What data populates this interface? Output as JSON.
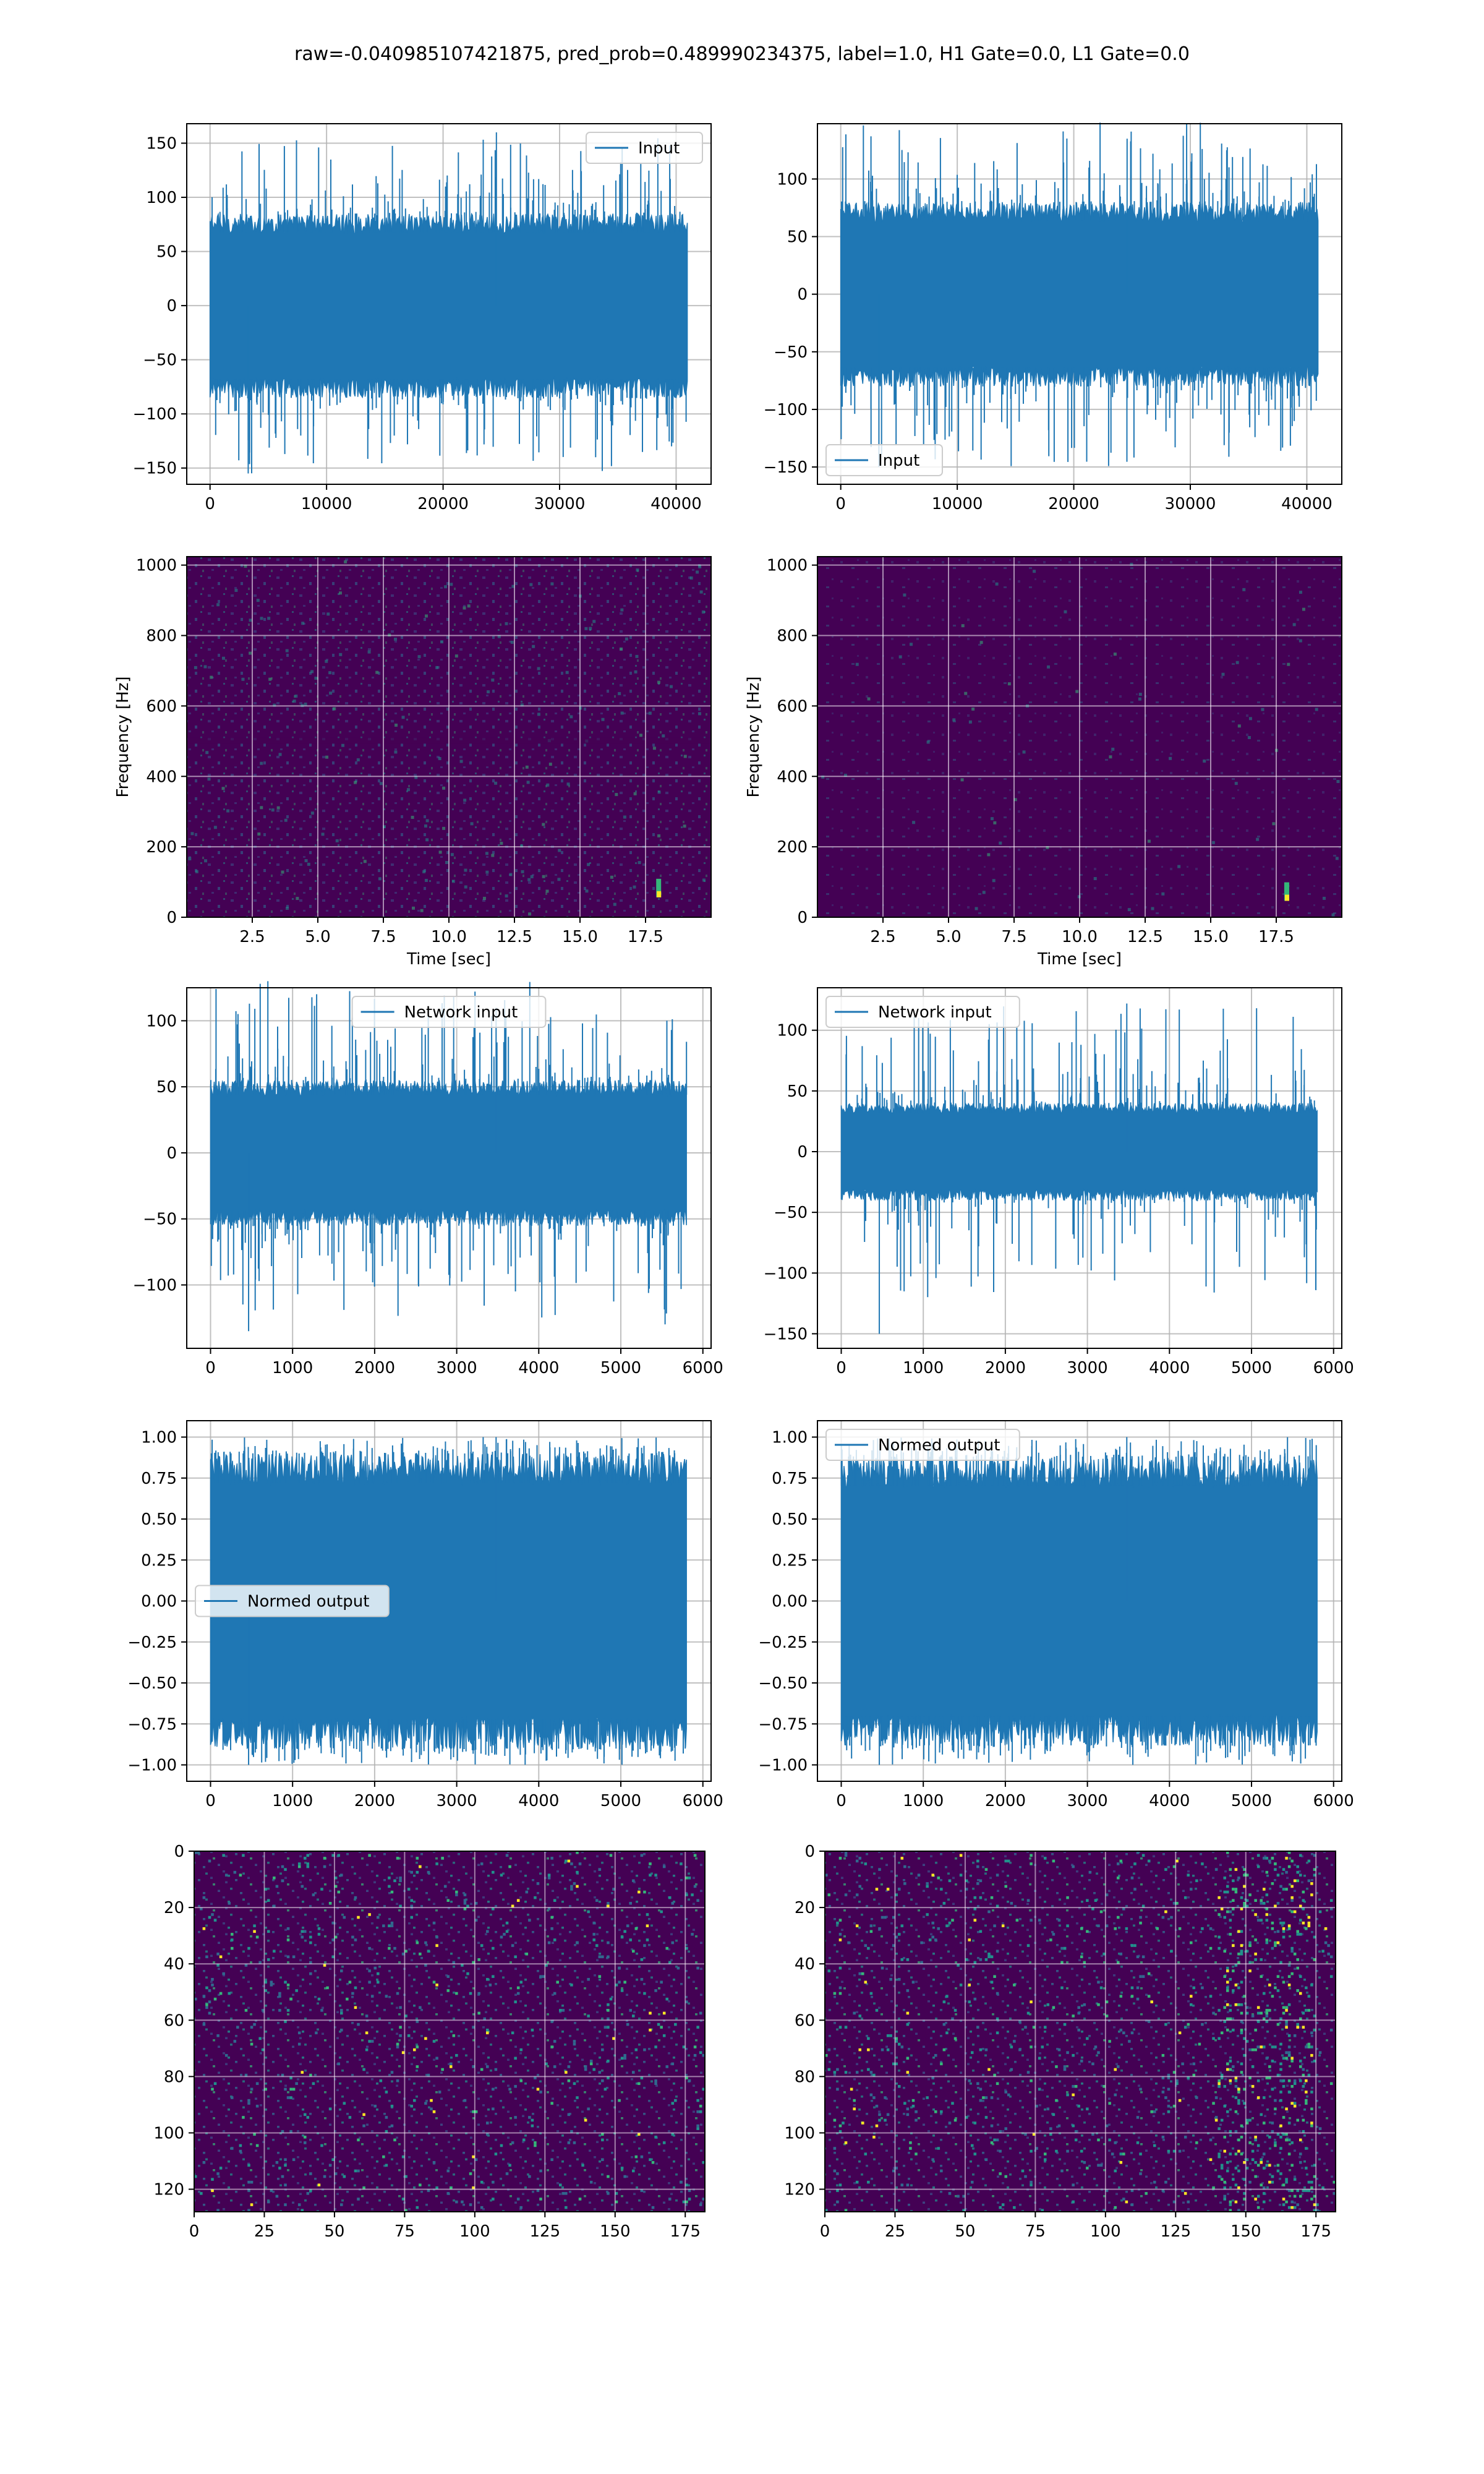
{
  "title": "raw=-0.040985107421875, pred_prob=0.489990234375, label=1.0, H1 Gate=0.0, L1 Gate=0.0",
  "colors": {
    "series": "#1f77b4",
    "grid": "#b0b0b0",
    "viridis_low": "#440154",
    "viridis_mid": "#21918c",
    "viridis_high": "#fde725"
  },
  "chart_data": [
    {
      "type": "line",
      "panel": "row1-left",
      "series": [
        {
          "name": "Input",
          "description": "dense noise time series"
        }
      ],
      "x_range": [
        0,
        40960
      ],
      "y_range": [
        -155,
        160
      ],
      "xlim": [
        -2000,
        43000
      ],
      "ylim": [
        -165,
        168
      ],
      "xticks": [
        0,
        10000,
        20000,
        30000,
        40000
      ],
      "yticks": [
        -150,
        -100,
        -50,
        0,
        50,
        100,
        150
      ],
      "band_amplitude": 85,
      "spike_amplitude": 155,
      "legend": "upper right",
      "grid": true
    },
    {
      "type": "line",
      "panel": "row1-right",
      "series": [
        {
          "name": "Input",
          "description": "dense noise time series"
        }
      ],
      "x_range": [
        0,
        40960
      ],
      "y_range": [
        -150,
        135
      ],
      "xlim": [
        -2000,
        43000
      ],
      "ylim": [
        -165,
        148
      ],
      "xticks": [
        0,
        10000,
        20000,
        30000,
        40000
      ],
      "yticks": [
        -150,
        -100,
        -50,
        0,
        50,
        100
      ],
      "band_amplitude": 80,
      "spike_amplitude": 150,
      "legend": "lower left",
      "grid": true
    },
    {
      "type": "heatmap",
      "panel": "row2-left",
      "colormap": "viridis",
      "xlabel": "Time [sec]",
      "ylabel": "Frequency [Hz]",
      "xlim": [
        0,
        20
      ],
      "ylim": [
        0,
        1024
      ],
      "xticks": [
        2.5,
        5.0,
        7.5,
        10.0,
        12.5,
        15.0,
        17.5
      ],
      "yticks": [
        0,
        200,
        400,
        600,
        800,
        1000
      ],
      "grid": true,
      "hotspot": {
        "time": 18.0,
        "freq": 60
      }
    },
    {
      "type": "heatmap",
      "panel": "row2-right",
      "colormap": "viridis",
      "xlabel": "Time [sec]",
      "ylabel": "Frequency [Hz]",
      "xlim": [
        0,
        20
      ],
      "ylim": [
        0,
        1024
      ],
      "xticks": [
        2.5,
        5.0,
        7.5,
        10.0,
        12.5,
        15.0,
        17.5
      ],
      "yticks": [
        0,
        200,
        400,
        600,
        800,
        1000
      ],
      "grid": true,
      "hotspot": {
        "time": 17.9,
        "freq": 50
      }
    },
    {
      "type": "line",
      "panel": "row3-left",
      "series": [
        {
          "name": "Network input",
          "description": "dense noise time series"
        }
      ],
      "x_range": [
        0,
        5800
      ],
      "y_range": [
        -135,
        110
      ],
      "xlim": [
        -290,
        6100
      ],
      "ylim": [
        -148,
        125
      ],
      "xticks": [
        0,
        1000,
        2000,
        3000,
        4000,
        5000,
        6000
      ],
      "yticks": [
        -100,
        -50,
        0,
        50,
        100
      ],
      "band_amplitude": 55,
      "spike_amplitude": 130,
      "legend": "upper center",
      "grid": true
    },
    {
      "type": "line",
      "panel": "row3-right",
      "series": [
        {
          "name": "Network input",
          "description": "dense noise time series"
        }
      ],
      "x_range": [
        0,
        5800
      ],
      "y_range": [
        -150,
        122
      ],
      "xlim": [
        -290,
        6100
      ],
      "ylim": [
        -162,
        135
      ],
      "xticks": [
        0,
        1000,
        2000,
        3000,
        4000,
        5000,
        6000
      ],
      "yticks": [
        -150,
        -100,
        -50,
        0,
        50,
        100
      ],
      "band_amplitude": 40,
      "spike_amplitude": 120,
      "legend": "upper left",
      "grid": true
    },
    {
      "type": "line",
      "panel": "row4-left",
      "series": [
        {
          "name": "Normed output",
          "description": "dense normalized series"
        }
      ],
      "x_range": [
        0,
        5800
      ],
      "y_range": [
        -1.0,
        1.0
      ],
      "xlim": [
        -290,
        6100
      ],
      "ylim": [
        -1.1,
        1.1
      ],
      "xticks": [
        0,
        1000,
        2000,
        3000,
        4000,
        5000,
        6000
      ],
      "yticks": [
        -1.0,
        -0.75,
        -0.5,
        -0.25,
        0.0,
        0.25,
        0.5,
        0.75,
        1.0
      ],
      "band_amplitude": 0.9,
      "spike_amplitude": 1.0,
      "legend": "center left",
      "grid": true
    },
    {
      "type": "line",
      "panel": "row4-right",
      "series": [
        {
          "name": "Normed output",
          "description": "dense normalized series"
        }
      ],
      "x_range": [
        0,
        5800
      ],
      "y_range": [
        -1.0,
        1.0
      ],
      "xlim": [
        -290,
        6100
      ],
      "ylim": [
        -1.1,
        1.1
      ],
      "xticks": [
        0,
        1000,
        2000,
        3000,
        4000,
        5000,
        6000
      ],
      "yticks": [
        -1.0,
        -0.75,
        -0.5,
        -0.25,
        0.0,
        0.25,
        0.5,
        0.75,
        1.0
      ],
      "band_amplitude": 0.88,
      "spike_amplitude": 1.0,
      "legend": "upper left",
      "grid": true
    },
    {
      "type": "heatmap",
      "panel": "row5-left",
      "colormap": "viridis",
      "xlim": [
        0,
        182
      ],
      "ylim": [
        128,
        0
      ],
      "xticks": [
        0,
        25,
        50,
        75,
        100,
        125,
        150,
        175
      ],
      "yticks": [
        0,
        20,
        40,
        60,
        80,
        100,
        120
      ],
      "grid": true,
      "cells": {
        "cols": 182,
        "rows": 128
      }
    },
    {
      "type": "heatmap",
      "panel": "row5-right",
      "colormap": "viridis",
      "xlim": [
        0,
        182
      ],
      "ylim": [
        128,
        0
      ],
      "xticks": [
        0,
        25,
        50,
        75,
        100,
        125,
        150,
        175
      ],
      "yticks": [
        0,
        20,
        40,
        60,
        80,
        100,
        120
      ],
      "grid": true,
      "cells": {
        "cols": 182,
        "rows": 128
      },
      "bright_band_columns": [
        140,
        175
      ]
    }
  ]
}
